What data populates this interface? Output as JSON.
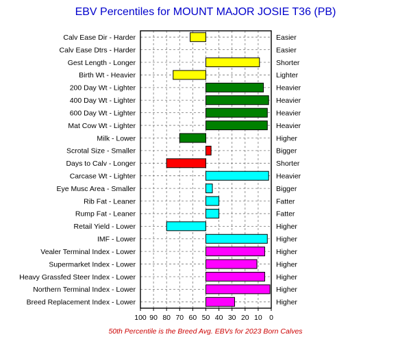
{
  "title": "EBV Percentiles for MOUNT MAJOR JOSIE T36 (PB)",
  "footnote": "50th Percentile is the Breed Avg. EBVs for 2023 Born Calves",
  "colors": {
    "yellow": "#ffff00",
    "green": "#008000",
    "red": "#ff0000",
    "cyan": "#00ffff",
    "magenta": "#ff00ff",
    "title": "#0000cc",
    "footnote": "#cc0000"
  },
  "chart_data": {
    "type": "bar",
    "orientation": "horizontal",
    "baseline": 50,
    "xlim": [
      100,
      0
    ],
    "x_ticks": [
      100,
      90,
      80,
      70,
      60,
      50,
      40,
      30,
      20,
      10,
      0
    ],
    "grid": true,
    "rows": [
      {
        "left": "Calv Ease Dir - Harder",
        "right": "Easier",
        "value": 62,
        "color": "yellow"
      },
      {
        "left": "Calv Ease Dtrs - Harder",
        "right": "Easier",
        "value": null,
        "color": "yellow"
      },
      {
        "left": "Gest Length - Longer",
        "right": "Shorter",
        "value": 9,
        "color": "yellow"
      },
      {
        "left": "Birth Wt - Heavier",
        "right": "Lighter",
        "value": 75,
        "color": "yellow"
      },
      {
        "left": "200 Day Wt - Lighter",
        "right": "Heavier",
        "value": 6,
        "color": "green"
      },
      {
        "left": "400 Day Wt - Lighter",
        "right": "Heavier",
        "value": 2,
        "color": "green"
      },
      {
        "left": "600 Day Wt - Lighter",
        "right": "Heavier",
        "value": 3,
        "color": "green"
      },
      {
        "left": "Mat Cow Wt - Lighter",
        "right": "Heavier",
        "value": 3,
        "color": "green"
      },
      {
        "left": "Milk - Lower",
        "right": "Higher",
        "value": 70,
        "color": "green"
      },
      {
        "left": "Scrotal Size - Smaller",
        "right": "Bigger",
        "value": 46,
        "color": "red"
      },
      {
        "left": "Days to Calv - Longer",
        "right": "Shorter",
        "value": 80,
        "color": "red"
      },
      {
        "left": "Carcase Wt - Lighter",
        "right": "Heavier",
        "value": 2,
        "color": "cyan"
      },
      {
        "left": "Eye Musc Area - Smaller",
        "right": "Bigger",
        "value": 45,
        "color": "cyan"
      },
      {
        "left": "Rib Fat - Leaner",
        "right": "Fatter",
        "value": 40,
        "color": "cyan"
      },
      {
        "left": "Rump Fat - Leaner",
        "right": "Fatter",
        "value": 40,
        "color": "cyan"
      },
      {
        "left": "Retail Yield - Lower",
        "right": "Higher",
        "value": 80,
        "color": "cyan"
      },
      {
        "left": "IMF - Lower",
        "right": "Higher",
        "value": 3,
        "color": "cyan"
      },
      {
        "left": "Vealer Terminal Index - Lower",
        "right": "Higher",
        "value": 5,
        "color": "magenta"
      },
      {
        "left": "Supermarket Index - Lower",
        "right": "Higher",
        "value": 11,
        "color": "magenta"
      },
      {
        "left": "Heavy Grassfed Steer Index - Lower",
        "right": "Higher",
        "value": 5,
        "color": "magenta"
      },
      {
        "left": "Northern Terminal Index - Lower",
        "right": "Higher",
        "value": 1,
        "color": "magenta"
      },
      {
        "left": "Breed Replacement Index - Lower",
        "right": "Higher",
        "value": 28,
        "color": "magenta"
      }
    ]
  }
}
